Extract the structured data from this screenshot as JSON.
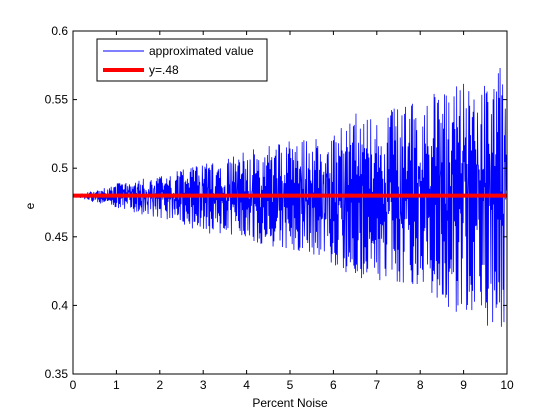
{
  "chart_data": {
    "type": "line",
    "title": "",
    "xlabel": "Percent Noise",
    "ylabel": "e",
    "xlim": [
      0,
      10
    ],
    "ylim": [
      0.35,
      0.6
    ],
    "xticks": [
      0,
      1,
      2,
      3,
      4,
      5,
      6,
      7,
      8,
      9,
      10
    ],
    "xtick_labels": [
      "0",
      "1",
      "2",
      "3",
      "4",
      "5",
      "6",
      "7",
      "8",
      "9",
      "10"
    ],
    "yticks": [
      0.35,
      0.4,
      0.45,
      0.5,
      0.55,
      0.6
    ],
    "ytick_labels": [
      "0.35",
      "0.4",
      "0.45",
      "0.5",
      "0.55",
      "0.6"
    ],
    "grid": false,
    "legend_position": "top-left",
    "series": [
      {
        "name": "approximated value",
        "color": "#0000ff",
        "x": [
          0,
          0.5,
          1,
          1.5,
          2,
          2.5,
          3,
          3.5,
          4,
          4.5,
          5,
          5.5,
          6,
          6.5,
          7,
          7.5,
          8,
          8.5,
          9,
          9.5,
          9.9,
          10
        ],
        "y_upper": [
          0.48,
          0.484,
          0.489,
          0.492,
          0.494,
          0.5,
          0.503,
          0.508,
          0.513,
          0.518,
          0.521,
          0.522,
          0.525,
          0.54,
          0.538,
          0.545,
          0.55,
          0.558,
          0.562,
          0.562,
          0.576,
          0.535
        ],
        "y_lower": [
          0.48,
          0.475,
          0.471,
          0.467,
          0.463,
          0.46,
          0.452,
          0.45,
          0.446,
          0.443,
          0.437,
          0.437,
          0.43,
          0.42,
          0.418,
          0.416,
          0.413,
          0.4,
          0.392,
          0.385,
          0.383,
          0.39
        ]
      },
      {
        "name": "y=.48",
        "color": "#ff0000",
        "x": [
          0,
          10
        ],
        "y": [
          0.48,
          0.48
        ]
      }
    ]
  }
}
